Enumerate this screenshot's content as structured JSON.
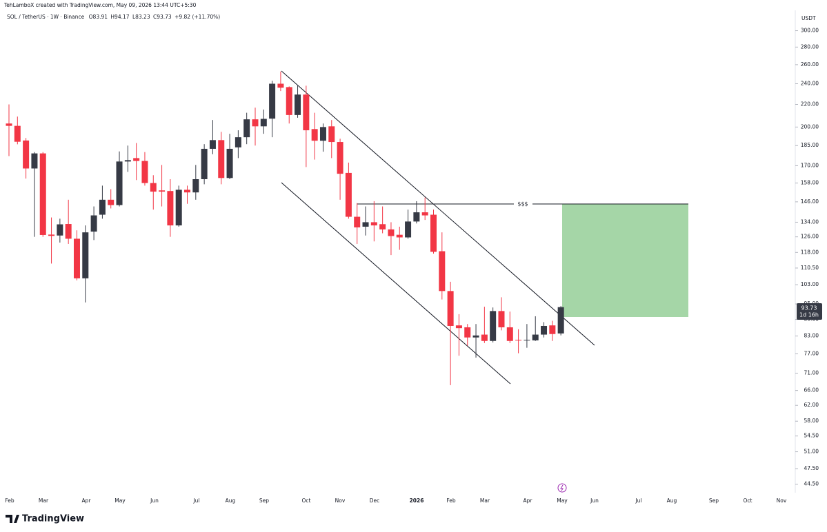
{
  "header": {
    "credit": "TehLamboX created with TradingView.com, May 09, 2026 13:44 UTC+5:30",
    "symbol": "SOL / TetherUS · 1W · Binance",
    "open": "O83.91",
    "high": "H94.17",
    "low": "L83.23",
    "close": "C93.73",
    "change": "+9.82 (+11.70%)"
  },
  "chart_data": {
    "type": "candlestick",
    "currency": "USDT",
    "log_scale": true,
    "up_color": "#363a45",
    "down_color": "#f23645",
    "open": [
      203,
      201,
      189,
      168,
      179,
      127.2,
      126.7,
      133,
      125,
      105.8,
      128.8,
      138.3,
      147.3,
      144,
      173,
      175.5,
      173.4,
      158,
      153.2,
      152.8,
      132.2,
      153.6,
      151.9,
      160.6,
      182.5,
      189.3,
      161.4,
      183.6,
      191.6,
      206.6,
      200.6,
      207.2,
      240,
      236.6,
      210.4,
      229.3,
      198.3,
      188.8,
      200.6,
      187.8,
      164.9,
      137.1,
      131.5,
      134,
      132.9,
      130,
      127.1,
      125.7,
      134.4,
      139.7,
      138.3,
      118.6,
      100.3,
      86.8,
      86.1,
      82.5,
      83.5,
      81.3,
      92.2,
      86.1,
      81.7,
      81.5,
      81.5,
      83.5,
      86.8,
      83.91
    ],
    "high": [
      220,
      209,
      191,
      180,
      180,
      136.7,
      136,
      147.3,
      129.5,
      132.2,
      143.2,
      156.3,
      154,
      180.5,
      185,
      187,
      180,
      163.3,
      170.5,
      160.6,
      156.3,
      156.3,
      170.5,
      186.1,
      206,
      196,
      194.4,
      197.3,
      212.4,
      217,
      215.3,
      243,
      252.6,
      237.3,
      238,
      238,
      212.4,
      203,
      206,
      190.4,
      172.2,
      145.2,
      143.2,
      146.4,
      143.2,
      134,
      131.5,
      141.3,
      146.4,
      148.7,
      141.3,
      128.4,
      104.3,
      91,
      87.3,
      87.3,
      93.9,
      93.6,
      97.7,
      92,
      85.4,
      87.3,
      90.2,
      88,
      88.5,
      94.17
    ],
    "low": [
      177,
      186,
      161,
      126,
      126,
      112.6,
      123,
      122.3,
      104.9,
      95.6,
      124.3,
      136,
      142,
      143.2,
      165.6,
      160,
      156.3,
      141.3,
      143.2,
      126,
      131.5,
      144.8,
      147.3,
      157.2,
      178.4,
      157.2,
      160.6,
      175.5,
      186.1,
      185,
      194.4,
      191.6,
      232.7,
      203,
      208,
      169,
      174.4,
      180.3,
      175.5,
      147.3,
      136,
      122.3,
      126.7,
      123.6,
      127.9,
      116.7,
      119.3,
      125,
      133.3,
      135.3,
      117.4,
      96.8,
      67.5,
      76.4,
      79.7,
      75.8,
      80.6,
      80.8,
      85,
      80.6,
      77.2,
      79,
      81.3,
      82.5,
      81.3,
      83.23
    ],
    "close": [
      201,
      188,
      168,
      179,
      127,
      126.5,
      132.8,
      125,
      105.8,
      128.4,
      137.9,
      147.3,
      144,
      173,
      174,
      173.4,
      158,
      152.4,
      152.4,
      132.2,
      153.6,
      151.9,
      160.6,
      182.5,
      189.3,
      161.4,
      182.5,
      191.6,
      206.6,
      200.6,
      207,
      240,
      236,
      210.4,
      229.3,
      197.3,
      188.8,
      200,
      187.8,
      164.3,
      137.1,
      131.1,
      134,
      132.2,
      130,
      126.4,
      125.7,
      134.4,
      139.7,
      137.9,
      118.3,
      100.3,
      86.6,
      85.8,
      82.5,
      83.2,
      81.3,
      92.2,
      86.1,
      81.3,
      81.5,
      81.7,
      83.5,
      86.6,
      83.7,
      93.73
    ],
    "time_labels": [
      "Feb",
      "Mar",
      "Apr",
      "May",
      "Jun",
      "Jul",
      "Aug",
      "Sep",
      "Oct",
      "Nov",
      "Dec",
      "2026",
      "Feb",
      "Mar",
      "Apr",
      "May",
      "Jun",
      "Jul",
      "Aug",
      "Sep",
      "Oct",
      "Nov"
    ],
    "ylim": [
      43.3,
      324
    ],
    "yticks": [
      {
        "value": 300,
        "label": "300.00"
      },
      {
        "value": 280,
        "label": "280.00"
      },
      {
        "value": 260,
        "label": "260.00"
      },
      {
        "value": 240,
        "label": "240.00"
      },
      {
        "value": 220,
        "label": "220.00"
      },
      {
        "value": 200,
        "label": "200.00"
      },
      {
        "value": 185,
        "label": "185.00"
      },
      {
        "value": 170,
        "label": "170.00"
      },
      {
        "value": 158,
        "label": "158.00"
      },
      {
        "value": 146,
        "label": "146.00"
      },
      {
        "value": 134,
        "label": "134.00"
      },
      {
        "value": 126,
        "label": "126.00"
      },
      {
        "value": 118,
        "label": "118.00"
      },
      {
        "value": 110.5,
        "label": "110.50"
      },
      {
        "value": 103,
        "label": "103.00"
      },
      {
        "value": 95,
        "label": "95.00"
      },
      {
        "value": 89,
        "label": "89.00"
      },
      {
        "value": 83,
        "label": "83.00"
      },
      {
        "value": 77,
        "label": "77.00"
      },
      {
        "value": 71,
        "label": "71.00"
      },
      {
        "value": 66,
        "label": "66.00"
      },
      {
        "value": 62,
        "label": "62.00"
      },
      {
        "value": 58,
        "label": "58.00"
      },
      {
        "value": 54.5,
        "label": "54.50"
      },
      {
        "value": 51,
        "label": "51.00"
      },
      {
        "value": 47.5,
        "label": "47.50"
      },
      {
        "value": 44.5,
        "label": "44.50"
      }
    ],
    "annotation": "$$$",
    "countdown": "1d 16h",
    "price_label": "93.73",
    "brand": "TradingView"
  }
}
